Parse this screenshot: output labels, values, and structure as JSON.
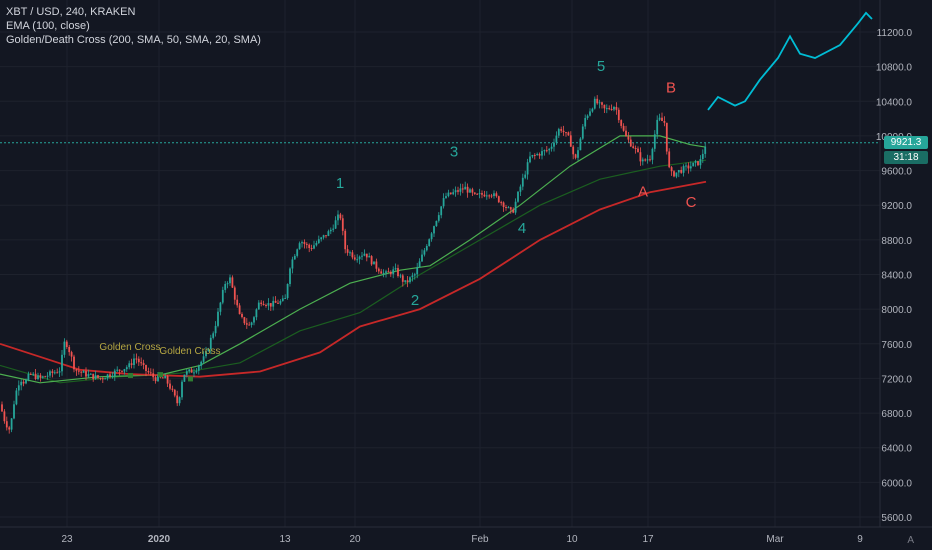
{
  "legend": {
    "symbol_line": "XBT / USD, 240, KRAKEN",
    "ema_line": "EMA (100, close)",
    "cross_line": "Golden/Death Cross (200, SMA, 50, SMA, 20, SMA)"
  },
  "price_scale": {
    "last_price": "9921.3",
    "countdown": "31:18",
    "auto_label": "A"
  },
  "colors": {
    "background": "#131722",
    "up": "#26a69a",
    "down": "#ef5350",
    "sma50": "#4caf50",
    "sma200": "#c62828",
    "ema100": "#1b5e20",
    "projection": "#00bcd4",
    "wave_label_green": "#26a69a",
    "wave_label_red": "#ef5350",
    "cross_label": "#b5a642"
  },
  "chart_data": {
    "type": "line",
    "title": "XBT / USD, 240, KRAKEN",
    "y_ticks": [
      "11200.0",
      "10800.0",
      "10400.0",
      "10000.0",
      "9600.0",
      "9200.0",
      "8800.0",
      "8400.0",
      "8000.0",
      "7600.0",
      "7200.0",
      "6800.0",
      "6400.0",
      "6000.0",
      "5600.0"
    ],
    "x_ticks": [
      "23",
      "2020",
      "13",
      "20",
      "Feb",
      "10",
      "17",
      "Mar",
      "9"
    ],
    "ylim": [
      5500,
      11600
    ],
    "grid": true,
    "price_path": [
      {
        "x": 0,
        "y": 6900
      },
      {
        "x": 5,
        "y": 6700
      },
      {
        "x": 10,
        "y": 6600
      },
      {
        "x": 15,
        "y": 7000
      },
      {
        "x": 20,
        "y": 7200
      },
      {
        "x": 25,
        "y": 7150
      },
      {
        "x": 30,
        "y": 7250
      },
      {
        "x": 40,
        "y": 7200
      },
      {
        "x": 50,
        "y": 7250
      },
      {
        "x": 60,
        "y": 7300
      },
      {
        "x": 65,
        "y": 7650
      },
      {
        "x": 70,
        "y": 7500
      },
      {
        "x": 75,
        "y": 7300
      },
      {
        "x": 85,
        "y": 7250
      },
      {
        "x": 100,
        "y": 7200
      },
      {
        "x": 110,
        "y": 7250
      },
      {
        "x": 120,
        "y": 7300
      },
      {
        "x": 130,
        "y": 7350
      },
      {
        "x": 135,
        "y": 7450
      },
      {
        "x": 145,
        "y": 7300
      },
      {
        "x": 155,
        "y": 7200
      },
      {
        "x": 165,
        "y": 7200
      },
      {
        "x": 170,
        "y": 7100
      },
      {
        "x": 178,
        "y": 6900
      },
      {
        "x": 183,
        "y": 7250
      },
      {
        "x": 195,
        "y": 7300
      },
      {
        "x": 205,
        "y": 7450
      },
      {
        "x": 215,
        "y": 7800
      },
      {
        "x": 225,
        "y": 8300
      },
      {
        "x": 230,
        "y": 8350
      },
      {
        "x": 240,
        "y": 7900
      },
      {
        "x": 250,
        "y": 7800
      },
      {
        "x": 260,
        "y": 8100
      },
      {
        "x": 270,
        "y": 8050
      },
      {
        "x": 285,
        "y": 8100
      },
      {
        "x": 290,
        "y": 8500
      },
      {
        "x": 300,
        "y": 8800
      },
      {
        "x": 310,
        "y": 8700
      },
      {
        "x": 320,
        "y": 8800
      },
      {
        "x": 330,
        "y": 8900
      },
      {
        "x": 340,
        "y": 9100
      },
      {
        "x": 345,
        "y": 8700
      },
      {
        "x": 355,
        "y": 8600
      },
      {
        "x": 365,
        "y": 8650
      },
      {
        "x": 375,
        "y": 8500
      },
      {
        "x": 385,
        "y": 8400
      },
      {
        "x": 395,
        "y": 8450
      },
      {
        "x": 405,
        "y": 8300
      },
      {
        "x": 415,
        "y": 8400
      },
      {
        "x": 425,
        "y": 8700
      },
      {
        "x": 435,
        "y": 9000
      },
      {
        "x": 445,
        "y": 9300
      },
      {
        "x": 455,
        "y": 9350
      },
      {
        "x": 465,
        "y": 9400
      },
      {
        "x": 475,
        "y": 9300
      },
      {
        "x": 490,
        "y": 9350
      },
      {
        "x": 505,
        "y": 9200
      },
      {
        "x": 512,
        "y": 9100
      },
      {
        "x": 520,
        "y": 9400
      },
      {
        "x": 530,
        "y": 9750
      },
      {
        "x": 540,
        "y": 9800
      },
      {
        "x": 550,
        "y": 9850
      },
      {
        "x": 560,
        "y": 10100
      },
      {
        "x": 570,
        "y": 9950
      },
      {
        "x": 575,
        "y": 9700
      },
      {
        "x": 585,
        "y": 10200
      },
      {
        "x": 595,
        "y": 10400
      },
      {
        "x": 605,
        "y": 10300
      },
      {
        "x": 615,
        "y": 10350
      },
      {
        "x": 625,
        "y": 10000
      },
      {
        "x": 635,
        "y": 9850
      },
      {
        "x": 642,
        "y": 9700
      },
      {
        "x": 650,
        "y": 9750
      },
      {
        "x": 658,
        "y": 10200
      },
      {
        "x": 665,
        "y": 10150
      },
      {
        "x": 668,
        "y": 9650
      },
      {
        "x": 672,
        "y": 9550
      },
      {
        "x": 680,
        "y": 9600
      },
      {
        "x": 690,
        "y": 9650
      },
      {
        "x": 700,
        "y": 9700
      },
      {
        "x": 706,
        "y": 9920
      }
    ],
    "series": [
      {
        "name": "EMA (100, close)",
        "points": [
          {
            "x": 0,
            "y": 7350
          },
          {
            "x": 60,
            "y": 7150
          },
          {
            "x": 120,
            "y": 7220
          },
          {
            "x": 180,
            "y": 7260
          },
          {
            "x": 240,
            "y": 7380
          },
          {
            "x": 300,
            "y": 7750
          },
          {
            "x": 360,
            "y": 7960
          },
          {
            "x": 420,
            "y": 8400
          },
          {
            "x": 480,
            "y": 8800
          },
          {
            "x": 540,
            "y": 9200
          },
          {
            "x": 600,
            "y": 9500
          },
          {
            "x": 660,
            "y": 9650
          },
          {
            "x": 706,
            "y": 9720
          }
        ]
      },
      {
        "name": "SMA 50",
        "points": [
          {
            "x": 0,
            "y": 7250
          },
          {
            "x": 40,
            "y": 7150
          },
          {
            "x": 100,
            "y": 7220
          },
          {
            "x": 160,
            "y": 7240
          },
          {
            "x": 200,
            "y": 7350
          },
          {
            "x": 240,
            "y": 7600
          },
          {
            "x": 300,
            "y": 8000
          },
          {
            "x": 350,
            "y": 8300
          },
          {
            "x": 400,
            "y": 8450
          },
          {
            "x": 430,
            "y": 8500
          },
          {
            "x": 470,
            "y": 8800
          },
          {
            "x": 520,
            "y": 9200
          },
          {
            "x": 570,
            "y": 9650
          },
          {
            "x": 620,
            "y": 10000
          },
          {
            "x": 660,
            "y": 10000
          },
          {
            "x": 690,
            "y": 9900
          },
          {
            "x": 706,
            "y": 9870
          }
        ]
      },
      {
        "name": "SMA 200",
        "points": [
          {
            "x": 0,
            "y": 7600
          },
          {
            "x": 40,
            "y": 7450
          },
          {
            "x": 80,
            "y": 7300
          },
          {
            "x": 130,
            "y": 7250
          },
          {
            "x": 200,
            "y": 7220
          },
          {
            "x": 260,
            "y": 7280
          },
          {
            "x": 320,
            "y": 7500
          },
          {
            "x": 360,
            "y": 7800
          },
          {
            "x": 420,
            "y": 8000
          },
          {
            "x": 480,
            "y": 8350
          },
          {
            "x": 540,
            "y": 8800
          },
          {
            "x": 600,
            "y": 9150
          },
          {
            "x": 650,
            "y": 9350
          },
          {
            "x": 706,
            "y": 9470
          }
        ]
      },
      {
        "name": "Projection",
        "points": [
          {
            "x": 708,
            "y": 10300
          },
          {
            "x": 718,
            "y": 10450
          },
          {
            "x": 735,
            "y": 10350
          },
          {
            "x": 745,
            "y": 10400
          },
          {
            "x": 760,
            "y": 10650
          },
          {
            "x": 778,
            "y": 10900
          },
          {
            "x": 790,
            "y": 11150
          },
          {
            "x": 800,
            "y": 10950
          },
          {
            "x": 815,
            "y": 10900
          },
          {
            "x": 840,
            "y": 11050
          },
          {
            "x": 858,
            "y": 11300
          },
          {
            "x": 866,
            "y": 11420
          },
          {
            "x": 872,
            "y": 11350
          }
        ]
      }
    ],
    "annotations": [
      {
        "text": "1",
        "x": 340,
        "y": 9400,
        "color": "green"
      },
      {
        "text": "2",
        "x": 415,
        "y": 8050,
        "color": "green"
      },
      {
        "text": "3",
        "x": 454,
        "y": 9760,
        "color": "green"
      },
      {
        "text": "4",
        "x": 522,
        "y": 8880,
        "color": "green"
      },
      {
        "text": "5",
        "x": 601,
        "y": 10750,
        "color": "green"
      },
      {
        "text": "A",
        "x": 643,
        "y": 9300,
        "color": "red"
      },
      {
        "text": "B",
        "x": 671,
        "y": 10500,
        "color": "red"
      },
      {
        "text": "C",
        "x": 691,
        "y": 9180,
        "color": "red"
      },
      {
        "text": "Golden Cross",
        "x": 130,
        "y": 7530,
        "color": "gold"
      },
      {
        "text": "Golden Cross",
        "x": 190,
        "y": 7480,
        "color": "gold"
      }
    ]
  }
}
